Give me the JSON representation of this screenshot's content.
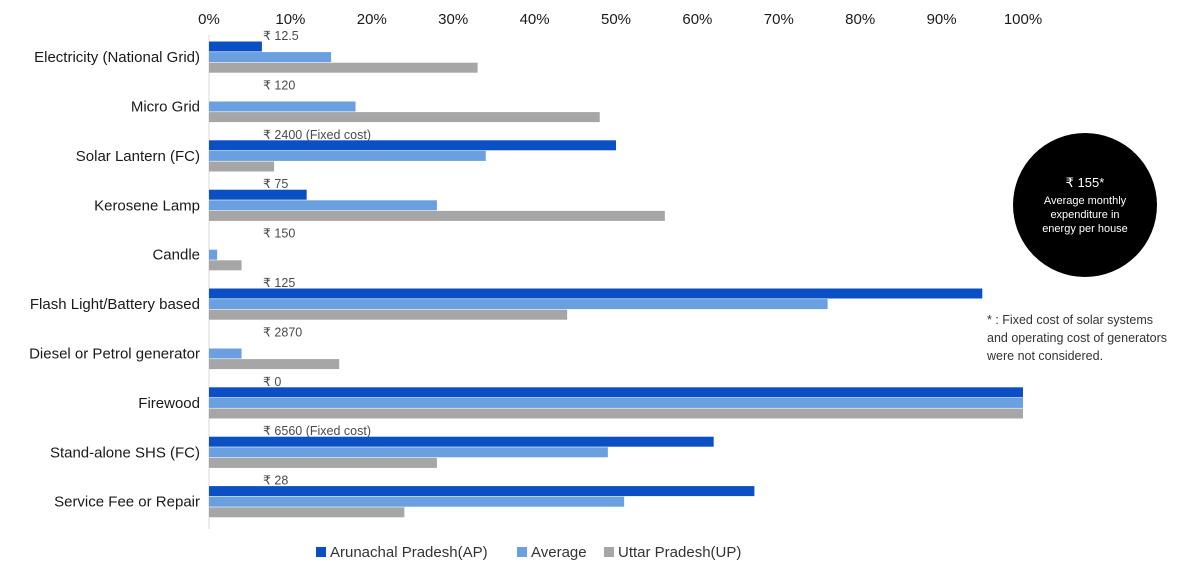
{
  "chart_data": {
    "type": "bar",
    "orientation": "horizontal",
    "x_ticks": [
      "0%",
      "10%",
      "20%",
      "30%",
      "40%",
      "50%",
      "60%",
      "70%",
      "80%",
      "90%",
      "100%"
    ],
    "xlim": [
      0,
      100
    ],
    "grid": false,
    "legend_position": "bottom",
    "categories": [
      "Electricity (National Grid)",
      "Micro Grid",
      "Solar Lantern (FC)",
      "Kerosene Lamp",
      "Candle",
      "Flash Light/Battery based",
      "Diesel or Petrol generator",
      "Firewood",
      "Stand-alone SHS (FC)",
      "Service Fee or Repair"
    ],
    "series": [
      {
        "name": "Arunachal Pradesh(AP)",
        "color": "#0a50c4",
        "values": [
          6.5,
          0,
          50,
          12,
          0,
          95,
          0,
          100,
          62,
          67
        ]
      },
      {
        "name": "Average",
        "color": "#6a9fe0",
        "values": [
          15,
          18,
          34,
          28,
          1,
          76,
          4,
          100,
          49,
          51
        ]
      },
      {
        "name": "Uttar Pradesh(UP)",
        "color": "#a6a6a6",
        "values": [
          33,
          48,
          8,
          56,
          4,
          44,
          16,
          100,
          28,
          24
        ]
      }
    ],
    "annotations": [
      "₹ 12.5",
      "₹ 120",
      "₹ 2400 (Fixed cost)",
      "₹ 75",
      "₹ 150",
      "₹ 125",
      "₹ 2870",
      "₹ 0",
      "₹ 6560 (Fixed cost)",
      "₹ 28"
    ]
  },
  "callout": {
    "value": "₹ 155*",
    "lines": [
      "Average monthly",
      "expenditure in",
      "energy per house"
    ],
    "color": "#000000"
  },
  "footnote": {
    "lines": [
      "* : Fixed cost of solar systems",
      "and operating cost of generators",
      "were not considered."
    ]
  }
}
